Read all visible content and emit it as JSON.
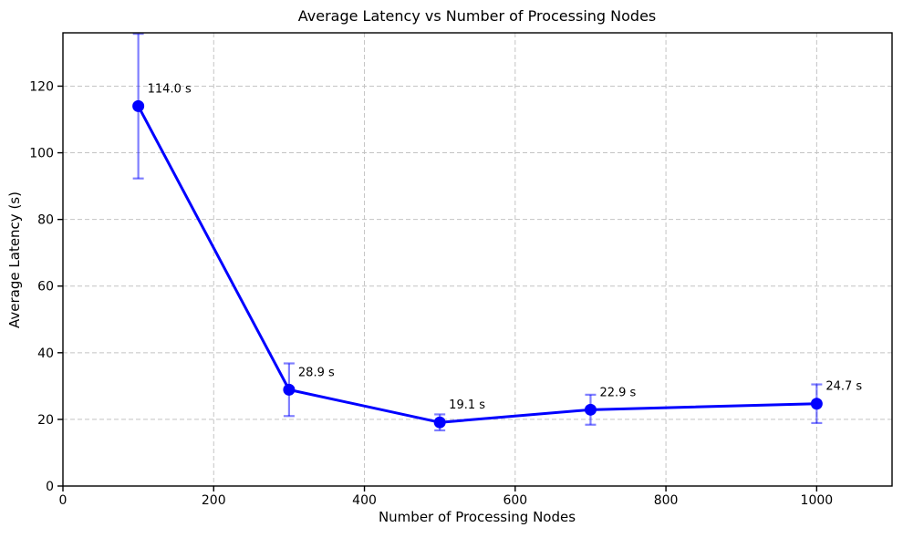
{
  "chart_data": {
    "type": "line",
    "title": "Average Latency vs Number of Processing Nodes",
    "xlabel": "Number of Processing Nodes",
    "ylabel": "Average Latency (s)",
    "x": [
      100,
      300,
      500,
      700,
      1000
    ],
    "y": [
      114.0,
      28.9,
      19.1,
      22.9,
      24.7
    ],
    "yerr": [
      21.7,
      7.9,
      2.4,
      4.5,
      5.8
    ],
    "point_labels": [
      "114.0 s",
      "28.9 s",
      "19.1 s",
      "22.9 s",
      "24.7 s"
    ],
    "xlim": [
      0,
      1100
    ],
    "ylim": [
      0,
      136
    ],
    "xticks": [
      0,
      200,
      400,
      600,
      800,
      1000
    ],
    "yticks": [
      0,
      20,
      40,
      60,
      80,
      100,
      120
    ],
    "grid": true,
    "grid_style": "dashed",
    "legend": false,
    "colors": {
      "line": "#0000ff",
      "marker": "#0000ff",
      "errorbar": "rgba(0,0,255,0.5)",
      "grid": "#c4c4c4",
      "spine": "#000000",
      "text": "#000000",
      "background": "#ffffff"
    }
  }
}
